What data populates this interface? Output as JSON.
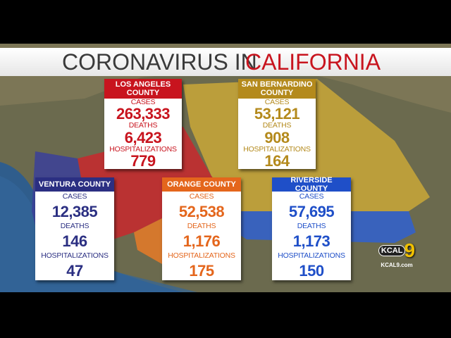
{
  "title": {
    "lead": "CORONAVIRUS IN",
    "highlight": "CALIFORNIA"
  },
  "counties": [
    {
      "name": "LOS ANGELES COUNTY",
      "color": "#c8141e",
      "cases_label": "CASES",
      "cases": "263,333",
      "deaths_label": "DEATHS",
      "deaths": "6,423",
      "hosp_label": "HOSPITALIZATIONS",
      "hosp": "779"
    },
    {
      "name": "SAN BERNARDINO COUNTY",
      "color": "#b48a1c",
      "cases_label": "CASES",
      "cases": "53,121",
      "deaths_label": "DEATHS",
      "deaths": "908",
      "hosp_label": "HOSPITALIZATIONS",
      "hosp": "164"
    },
    {
      "name": "VENTURA COUNTY",
      "color": "#2b2f82",
      "cases_label": "CASES",
      "cases": "12,385",
      "deaths_label": "DEATHS",
      "deaths": "146",
      "hosp_label": "HOSPITALIZATIONS",
      "hosp": "47"
    },
    {
      "name": "ORANGE COUNTY",
      "color": "#e4661c",
      "cases_label": "CASES",
      "cases": "52,538",
      "deaths_label": "DEATHS",
      "deaths": "1,176",
      "hosp_label": "HOSPITALIZATIONS",
      "hosp": "175"
    },
    {
      "name": "RIVERSIDE COUNTY",
      "color": "#1f4fc8",
      "cases_label": "CASES",
      "cases": "57,695",
      "deaths_label": "DEATHS",
      "deaths": "1,173",
      "hosp_label": "HOSPITALIZATIONS",
      "hosp": "150"
    }
  ],
  "logo": {
    "brand": "KCAL",
    "channel": "9",
    "url": "KCAL9.com"
  }
}
